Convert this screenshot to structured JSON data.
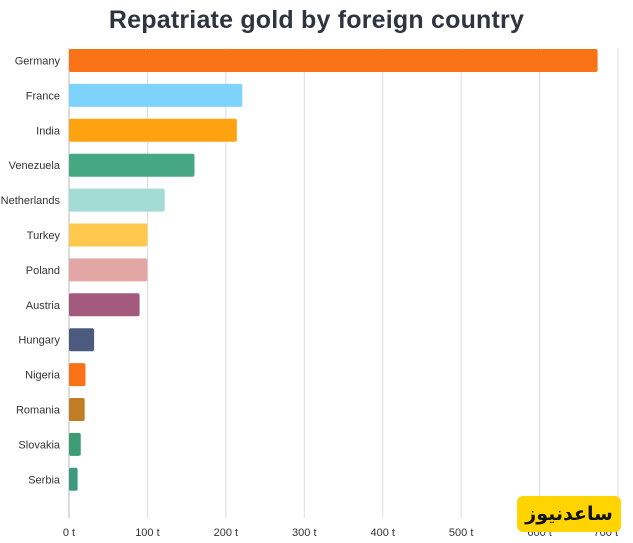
{
  "chart_data": {
    "type": "bar",
    "orientation": "horizontal",
    "title": "Repatriate gold by foreign country",
    "xlabel": "",
    "ylabel": "",
    "xlim": [
      0,
      700
    ],
    "x_ticks": [
      "0 t",
      "100 t",
      "200 t",
      "300 t",
      "400 t",
      "500 t",
      "600 t",
      "700 t"
    ],
    "grid": "vertical",
    "legend": "none",
    "categories": [
      "Germany",
      "France",
      "India",
      "Venezuela",
      "Netherlands",
      "Turkey",
      "Poland",
      "Austria",
      "Hungary",
      "Nigeria",
      "Romania",
      "Slovakia",
      "Serbia"
    ],
    "values": [
      674,
      221,
      214,
      160,
      122,
      100,
      100,
      90,
      32,
      21,
      20,
      15,
      11
    ],
    "colors": [
      "#f97316",
      "#7dd3fc",
      "#ffa20f",
      "#45a883",
      "#a3dcd4",
      "#ffc94d",
      "#e4a5a5",
      "#a35a7d",
      "#4d5a80",
      "#f97316",
      "#c17d23",
      "#3d9c74",
      "#3e9a7c"
    ]
  },
  "watermark": {
    "text": "ساعدنیوز"
  }
}
